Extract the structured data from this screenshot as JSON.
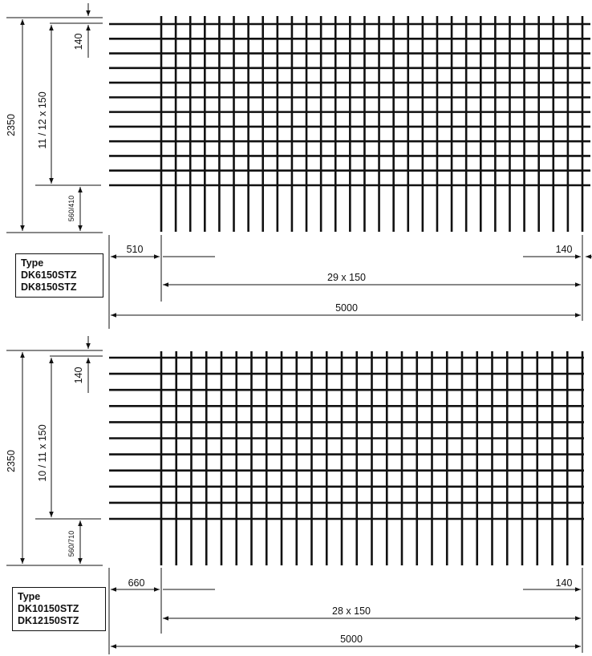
{
  "panels": [
    {
      "type_box": {
        "heading": "Type",
        "codes": [
          "DK6150STZ",
          "DK8150STZ"
        ]
      },
      "dims": {
        "height": "2350",
        "top_offset": "140",
        "spacing": "11 / 12 x 150",
        "bottom": "560/410",
        "left_overhang": "510",
        "right_overhang": "140",
        "cross_spacing": "29 x 150",
        "length": "5000"
      },
      "mesh": {
        "horizontal_bars": 12,
        "vertical_bars": 30
      }
    },
    {
      "type_box": {
        "heading": "Type",
        "codes": [
          "DK10150STZ",
          "DK12150STZ"
        ]
      },
      "dims": {
        "height": "2350",
        "top_offset": "140",
        "spacing": "10 / 11 x 150",
        "bottom": "560/710",
        "left_overhang": "660",
        "right_overhang": "140",
        "cross_spacing": "28 x 150",
        "length": "5000"
      },
      "mesh": {
        "horizontal_bars": 11,
        "vertical_bars": 29
      }
    }
  ]
}
